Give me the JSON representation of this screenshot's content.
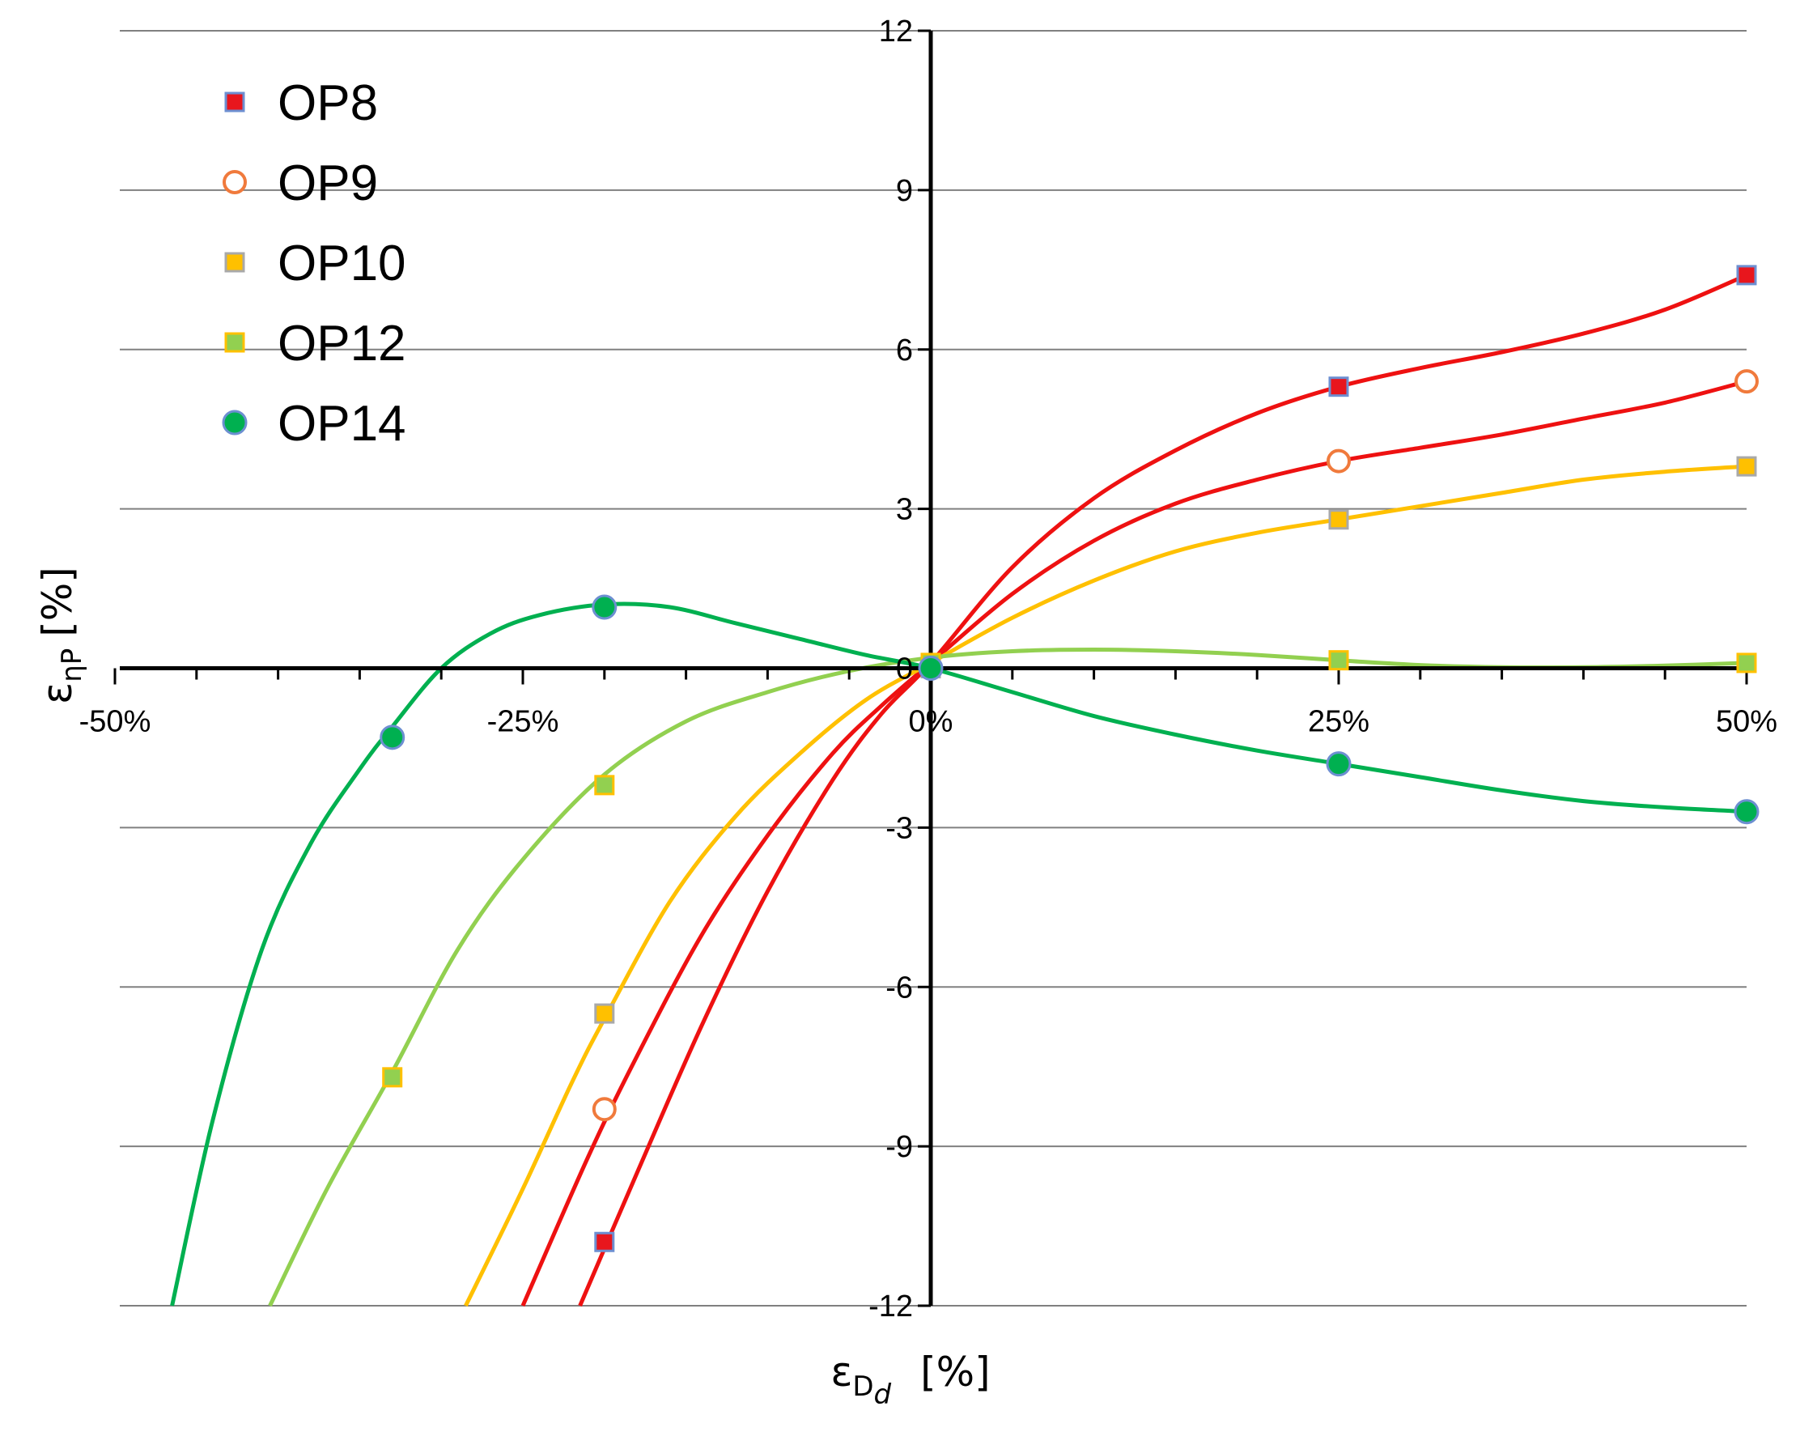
{
  "chart_data": {
    "type": "line",
    "title": "",
    "xlabel": "ε_Dd [%]",
    "ylabel": "ε_ηP [%]",
    "xlabel_parts": {
      "symbol": "ε",
      "sub": "D",
      "subsub": "d",
      "unit": "[%]"
    },
    "ylabel_parts": {
      "symbol": "ε",
      "sub": "ηP",
      "unit": "[%]"
    },
    "xlim": [
      -50,
      50
    ],
    "ylim": [
      -12,
      12
    ],
    "x_ticks": [
      -50,
      -25,
      0,
      25,
      50
    ],
    "x_tick_labels": [
      "-50%",
      "-25%",
      "0%",
      "25%",
      "50%"
    ],
    "y_ticks": [
      -12,
      -9,
      -6,
      -3,
      0,
      3,
      6,
      9,
      12
    ],
    "y_tick_labels": [
      "-12",
      "-9",
      "-6",
      "-3",
      "0",
      "3",
      "6",
      "9",
      "12"
    ],
    "grid": "horizontal",
    "legend_position": "top-left",
    "series": [
      {
        "name": "OP8",
        "marker": "square",
        "color": "#ee1111",
        "marker_fill": "#e8161d",
        "marker_edge": "#6d8fd1",
        "points": [
          [
            -20,
            -10.8
          ],
          [
            0,
            0
          ],
          [
            25,
            5.3
          ],
          [
            50,
            7.4
          ]
        ],
        "curve": [
          [
            -21.5,
            -12
          ],
          [
            -18,
            -9.5
          ],
          [
            -14,
            -6.7
          ],
          [
            -10,
            -4.2
          ],
          [
            -6,
            -2.1
          ],
          [
            -3,
            -0.85
          ],
          [
            0,
            0.1
          ],
          [
            5,
            1.9
          ],
          [
            10,
            3.2
          ],
          [
            15,
            4.1
          ],
          [
            20,
            4.8
          ],
          [
            25,
            5.3
          ],
          [
            30,
            5.65
          ],
          [
            35,
            5.95
          ],
          [
            40,
            6.3
          ],
          [
            45,
            6.75
          ],
          [
            50,
            7.4
          ]
        ]
      },
      {
        "name": "OP9",
        "marker": "circle-open",
        "color": "#ee1111",
        "marker_fill": "#ffffff",
        "marker_edge": "#f07a3c",
        "points": [
          [
            -20,
            -8.3
          ],
          [
            0,
            0
          ],
          [
            25,
            3.9
          ],
          [
            50,
            5.4
          ]
        ],
        "curve": [
          [
            -25,
            -12
          ],
          [
            -21,
            -9.2
          ],
          [
            -18,
            -7.3
          ],
          [
            -14,
            -5.0
          ],
          [
            -10,
            -3.15
          ],
          [
            -6,
            -1.6
          ],
          [
            -3,
            -0.7
          ],
          [
            0,
            0.1
          ],
          [
            5,
            1.4
          ],
          [
            10,
            2.4
          ],
          [
            15,
            3.1
          ],
          [
            20,
            3.55
          ],
          [
            25,
            3.9
          ],
          [
            30,
            4.15
          ],
          [
            35,
            4.4
          ],
          [
            40,
            4.7
          ],
          [
            45,
            5.0
          ],
          [
            50,
            5.4
          ]
        ]
      },
      {
        "name": "OP10",
        "marker": "square",
        "color": "#ffc000",
        "marker_fill": "#ffc000",
        "marker_edge": "#a9a9a9",
        "points": [
          [
            -20,
            -6.5
          ],
          [
            0,
            0
          ],
          [
            25,
            2.8
          ],
          [
            50,
            3.8
          ]
        ],
        "curve": [
          [
            -28.5,
            -12
          ],
          [
            -25,
            -9.8
          ],
          [
            -22,
            -7.8
          ],
          [
            -20,
            -6.6
          ],
          [
            -16,
            -4.4
          ],
          [
            -12,
            -2.8
          ],
          [
            -8,
            -1.6
          ],
          [
            -4,
            -0.6
          ],
          [
            0,
            0.1
          ],
          [
            5,
            0.95
          ],
          [
            10,
            1.65
          ],
          [
            15,
            2.2
          ],
          [
            20,
            2.55
          ],
          [
            25,
            2.8
          ],
          [
            30,
            3.05
          ],
          [
            35,
            3.3
          ],
          [
            40,
            3.55
          ],
          [
            45,
            3.7
          ],
          [
            50,
            3.8
          ]
        ]
      },
      {
        "name": "OP12",
        "marker": "square",
        "color": "#92d050",
        "marker_fill": "#92d050",
        "marker_edge": "#ffc000",
        "points": [
          [
            -33,
            -7.7
          ],
          [
            -20,
            -2.2
          ],
          [
            0,
            0.1
          ],
          [
            25,
            0.15
          ],
          [
            50,
            0.1
          ]
        ],
        "curve": [
          [
            -40.5,
            -12
          ],
          [
            -37,
            -9.8
          ],
          [
            -33,
            -7.6
          ],
          [
            -29,
            -5.3
          ],
          [
            -25,
            -3.6
          ],
          [
            -20,
            -2.0
          ],
          [
            -15,
            -1.0
          ],
          [
            -10,
            -0.45
          ],
          [
            -5,
            -0.05
          ],
          [
            0,
            0.2
          ],
          [
            5,
            0.32
          ],
          [
            10,
            0.35
          ],
          [
            15,
            0.32
          ],
          [
            20,
            0.25
          ],
          [
            25,
            0.15
          ],
          [
            30,
            0.06
          ],
          [
            35,
            0.02
          ],
          [
            40,
            0.02
          ],
          [
            45,
            0.05
          ],
          [
            50,
            0.1
          ]
        ]
      },
      {
        "name": "OP14",
        "marker": "circle",
        "color": "#00b050",
        "marker_fill": "#00b050",
        "marker_edge": "#6d8fd1",
        "points": [
          [
            -33,
            -1.3
          ],
          [
            -20,
            1.15
          ],
          [
            0,
            0
          ],
          [
            25,
            -1.8
          ],
          [
            50,
            -2.7
          ]
        ],
        "curve": [
          [
            -46.5,
            -12
          ],
          [
            -44,
            -8.5
          ],
          [
            -41,
            -5.3
          ],
          [
            -38,
            -3.3
          ],
          [
            -35,
            -1.9
          ],
          [
            -33,
            -1.1
          ],
          [
            -30,
            0.0
          ],
          [
            -27,
            0.65
          ],
          [
            -24,
            1.0
          ],
          [
            -20,
            1.2
          ],
          [
            -16,
            1.15
          ],
          [
            -12,
            0.85
          ],
          [
            -8,
            0.55
          ],
          [
            -4,
            0.25
          ],
          [
            0,
            0.0
          ],
          [
            5,
            -0.45
          ],
          [
            10,
            -0.9
          ],
          [
            15,
            -1.25
          ],
          [
            20,
            -1.55
          ],
          [
            25,
            -1.8
          ],
          [
            30,
            -2.05
          ],
          [
            35,
            -2.3
          ],
          [
            40,
            -2.5
          ],
          [
            45,
            -2.62
          ],
          [
            50,
            -2.7
          ]
        ]
      }
    ]
  }
}
